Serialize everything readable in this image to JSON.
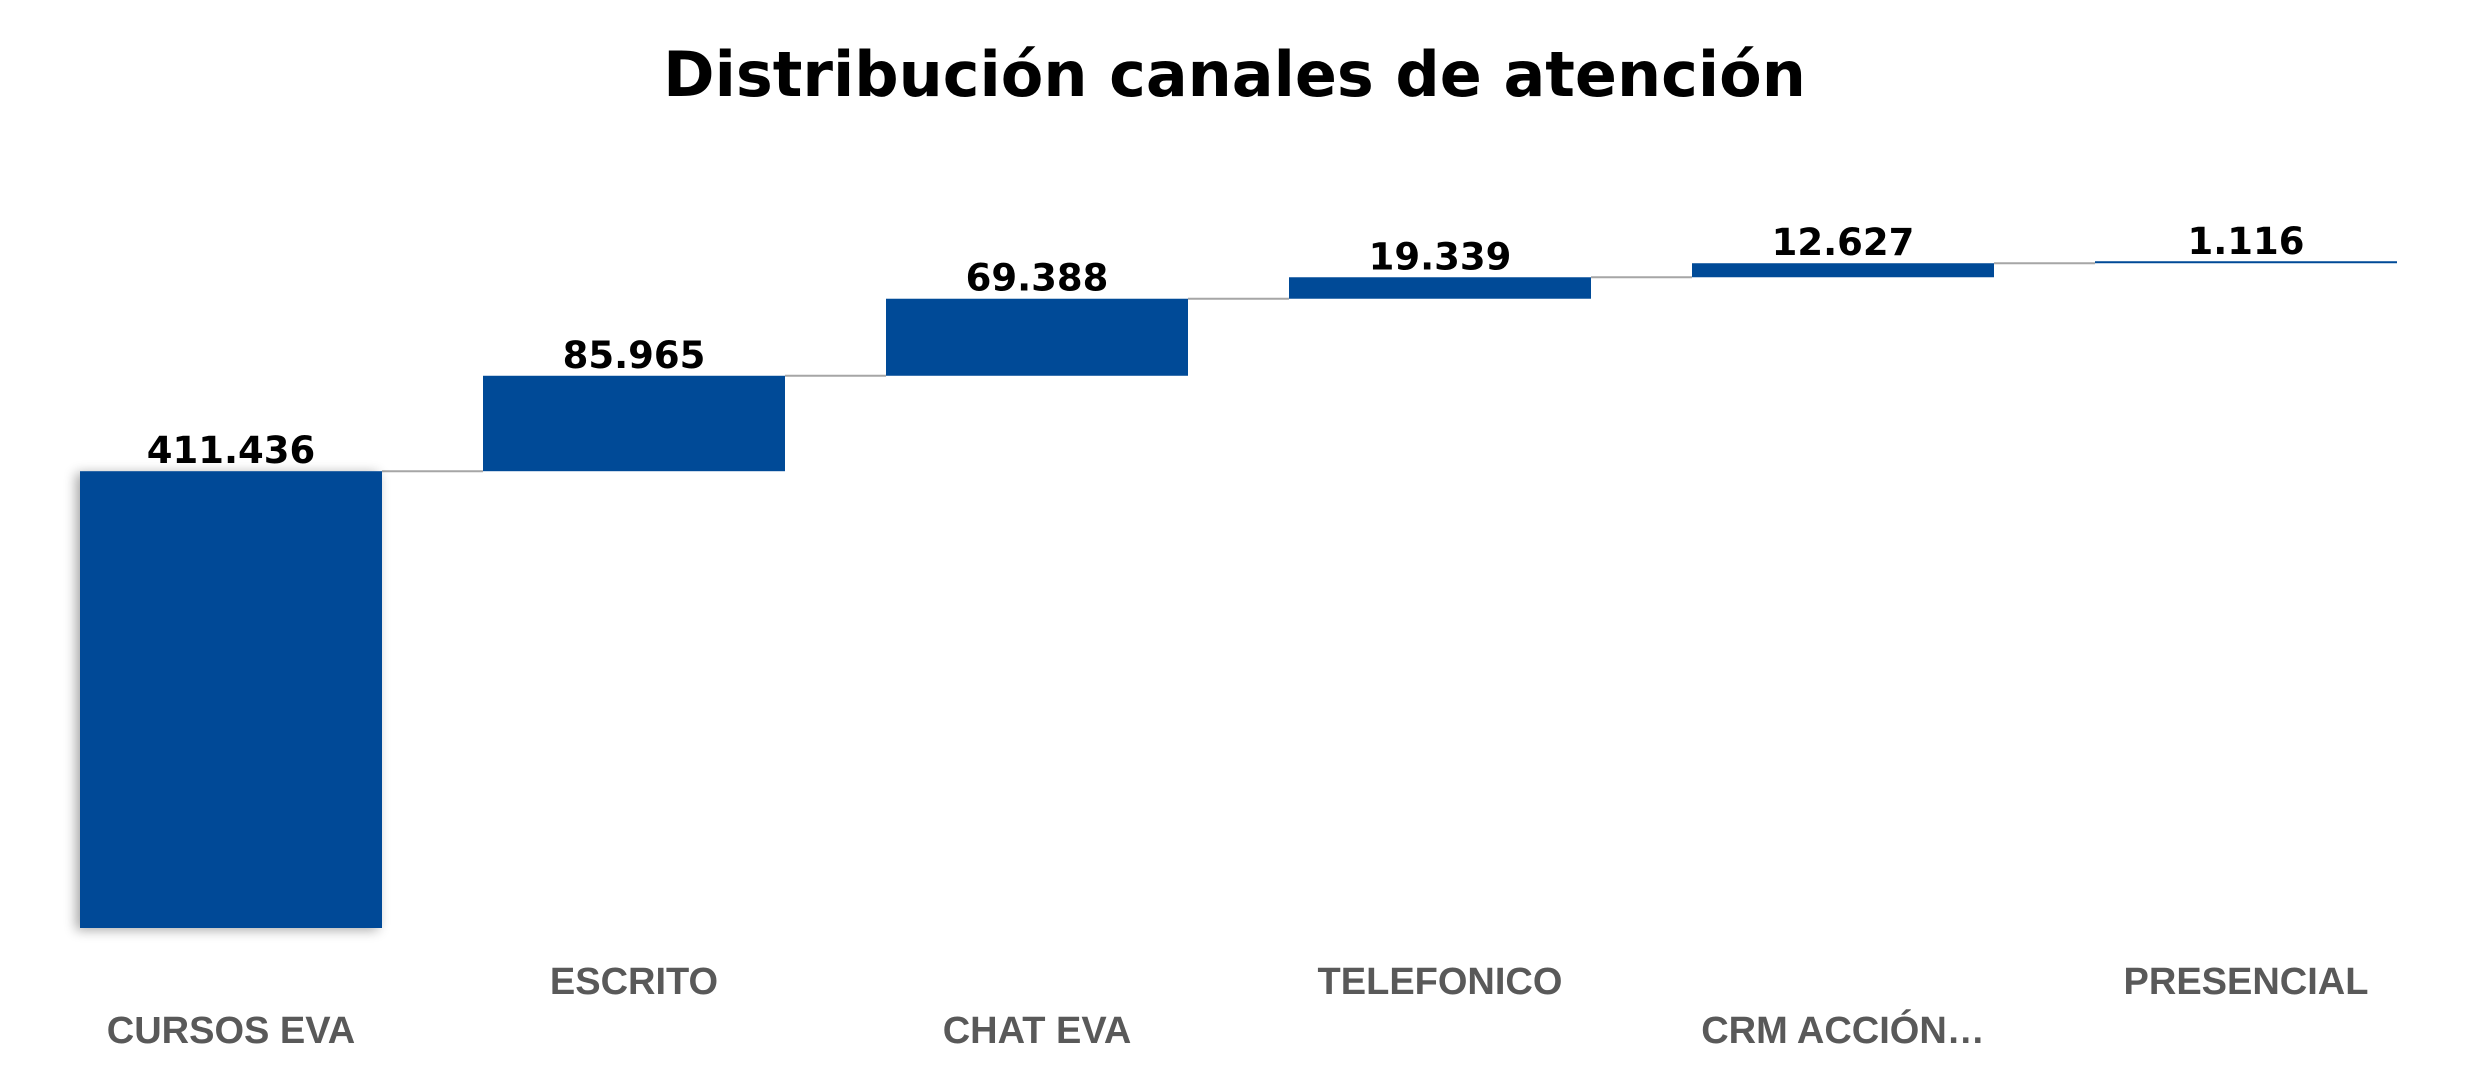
{
  "chart_data": {
    "type": "bar",
    "subtype": "waterfall",
    "title": "Distribución canales de atención",
    "xlabel": "",
    "ylabel": "",
    "categories": [
      "CURSOS EVA",
      "ESCRITO",
      "CHAT EVA",
      "TELEFONICO",
      "CRM ACCIÓN…",
      "PRESENCIAL"
    ],
    "values": [
      411436,
      85965,
      69388,
      19339,
      12627,
      1116
    ],
    "value_labels": [
      "411.436",
      "85.965",
      "69.388",
      "19.339",
      "12.627",
      "1.116"
    ],
    "legend": "none",
    "grid": false,
    "colors": {
      "bar": "#004a97",
      "connector": "#a6a6a6",
      "value_label": "#000000",
      "category_label": "#595959"
    }
  }
}
